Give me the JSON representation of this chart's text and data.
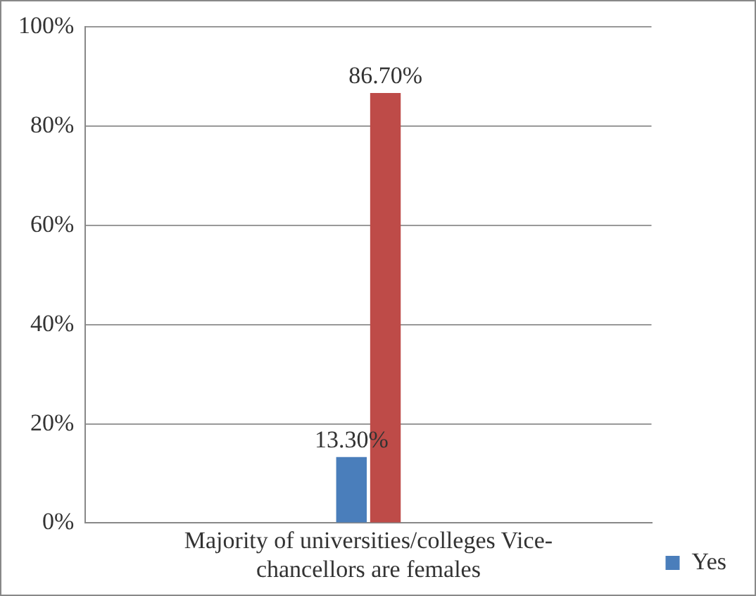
{
  "chart_data": {
    "type": "bar",
    "categories": [
      "Majority of universities/colleges Vice-chancellors are females"
    ],
    "series": [
      {
        "name": "Yes",
        "color": "#4a7ebb",
        "values": [
          13.3
        ],
        "value_labels": [
          "13.30%"
        ]
      },
      {
        "color": "#be4b48",
        "values": [
          86.7
        ],
        "value_labels": [
          "86.70%"
        ]
      }
    ],
    "ylim": [
      0,
      100
    ],
    "yticks": [
      {
        "value": 0,
        "label": "0%"
      },
      {
        "value": 20,
        "label": "20%"
      },
      {
        "value": 40,
        "label": "40%"
      },
      {
        "value": 60,
        "label": "60%"
      },
      {
        "value": 80,
        "label": "80%"
      },
      {
        "value": 100,
        "label": "100%"
      }
    ],
    "grid": "y",
    "legend": "bottom right"
  }
}
